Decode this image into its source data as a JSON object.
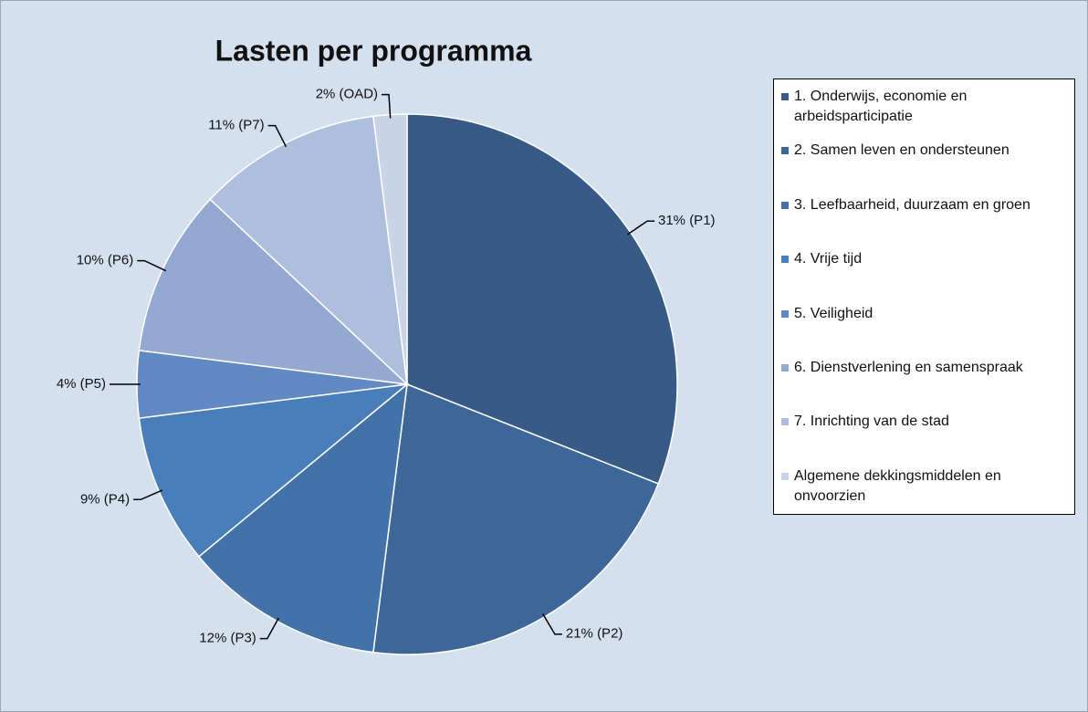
{
  "chart_data": {
    "type": "pie",
    "title": "Lasten per programma",
    "categories": [
      "1. Onderwijs, economie en arbeidsparticipatie",
      "2. Samen leven en ondersteunen",
      "3. Leefbaarheid, duurzaam en groen",
      "4. Vrije tijd",
      "5. Veiligheid",
      "6. Dienstverlening en samenspraak",
      "7. Inrichting van de stad",
      "Algemene dekkingsmiddelen en onvoorzien"
    ],
    "values": [
      31,
      21,
      12,
      9,
      4,
      10,
      11,
      2
    ],
    "value_labels": [
      "31% (P1)",
      "21% (P2)",
      "12% (P3)",
      "9% (P4)",
      "4% (P5)",
      "10% (P6)",
      "11% (P7)",
      "2% (OAD)"
    ],
    "colors": [
      "#375a87",
      "#3d6699",
      "#4272a8",
      "#4a7ebb",
      "#6189c4",
      "#93a9d1",
      "#adbfdc",
      "#c9d4e8"
    ],
    "legend": "right"
  }
}
